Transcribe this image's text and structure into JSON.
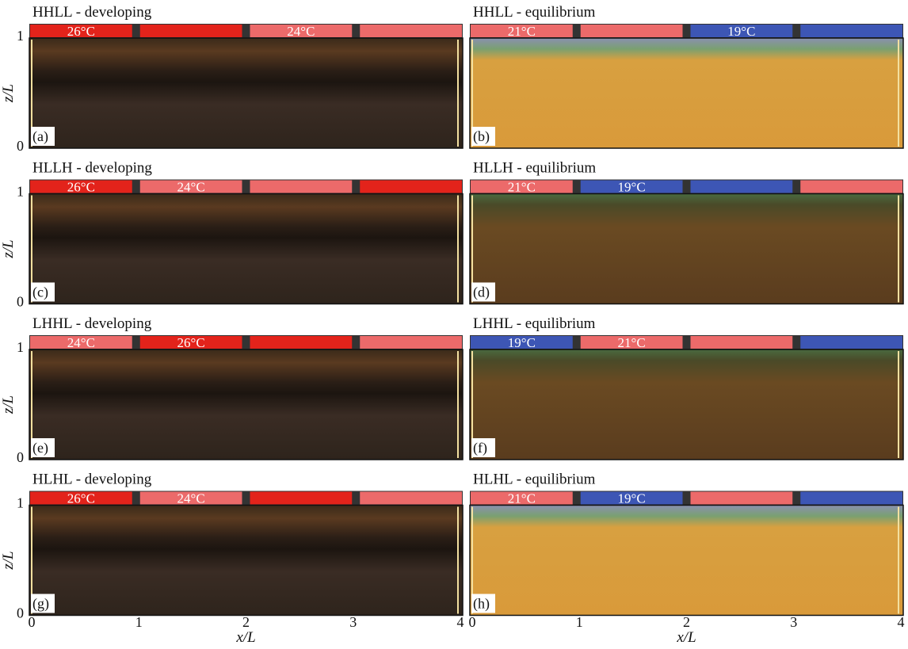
{
  "panels": [
    {
      "title": "HHLL - developing",
      "letter": "(a)",
      "segments": [
        {
          "color": "#e3231b",
          "label": "26°C"
        },
        {
          "color": "#e3231b"
        },
        {
          "color": "#ec6a6a",
          "label": "24°C"
        },
        {
          "color": "#ec6a6a"
        }
      ]
    },
    {
      "title": "HHLL - equilibrium",
      "letter": "(b)",
      "segments": [
        {
          "color": "#ec6a6a",
          "label": "21°C"
        },
        {
          "color": "#ec6a6a"
        },
        {
          "color": "#3d56b5",
          "label": "19°C"
        },
        {
          "color": "#3d56b5"
        }
      ]
    },
    {
      "title": "HLLH - developing",
      "letter": "(c)",
      "segments": [
        {
          "color": "#e3231b",
          "label": "26°C"
        },
        {
          "color": "#ec6a6a",
          "label": "24°C"
        },
        {
          "color": "#ec6a6a"
        },
        {
          "color": "#e3231b"
        }
      ]
    },
    {
      "title": "HLLH - equilibrium",
      "letter": "(d)",
      "segments": [
        {
          "color": "#ec6a6a",
          "label": "21°C"
        },
        {
          "color": "#3d56b5",
          "label": "19°C"
        },
        {
          "color": "#3d56b5"
        },
        {
          "color": "#ec6a6a"
        }
      ]
    },
    {
      "title": "LHHL - developing",
      "letter": "(e)",
      "segments": [
        {
          "color": "#ec6a6a",
          "label": "24°C"
        },
        {
          "color": "#e3231b",
          "label": "26°C"
        },
        {
          "color": "#e3231b"
        },
        {
          "color": "#ec6a6a"
        }
      ]
    },
    {
      "title": "LHHL - equilibrium",
      "letter": "(f)",
      "segments": [
        {
          "color": "#3d56b5",
          "label": "19°C"
        },
        {
          "color": "#ec6a6a",
          "label": "21°C"
        },
        {
          "color": "#ec6a6a"
        },
        {
          "color": "#3d56b5"
        }
      ]
    },
    {
      "title": "HLHL - developing",
      "letter": "(g)",
      "segments": [
        {
          "color": "#e3231b",
          "label": "26°C"
        },
        {
          "color": "#ec6a6a",
          "label": "24°C"
        },
        {
          "color": "#e3231b"
        },
        {
          "color": "#ec6a6a"
        }
      ]
    },
    {
      "title": "HLHL - equilibrium",
      "letter": "(h)",
      "segments": [
        {
          "color": "#ec6a6a",
          "label": "21°C"
        },
        {
          "color": "#3d56b5",
          "label": "19°C"
        },
        {
          "color": "#ec6a6a"
        },
        {
          "color": "#3d56b5"
        }
      ]
    }
  ],
  "y_axis": {
    "label": "z/L",
    "ticks": [
      "0",
      "1"
    ]
  },
  "x_axis": {
    "label": "x/L",
    "ticks": [
      "0",
      "1",
      "2",
      "3",
      "4"
    ]
  }
}
